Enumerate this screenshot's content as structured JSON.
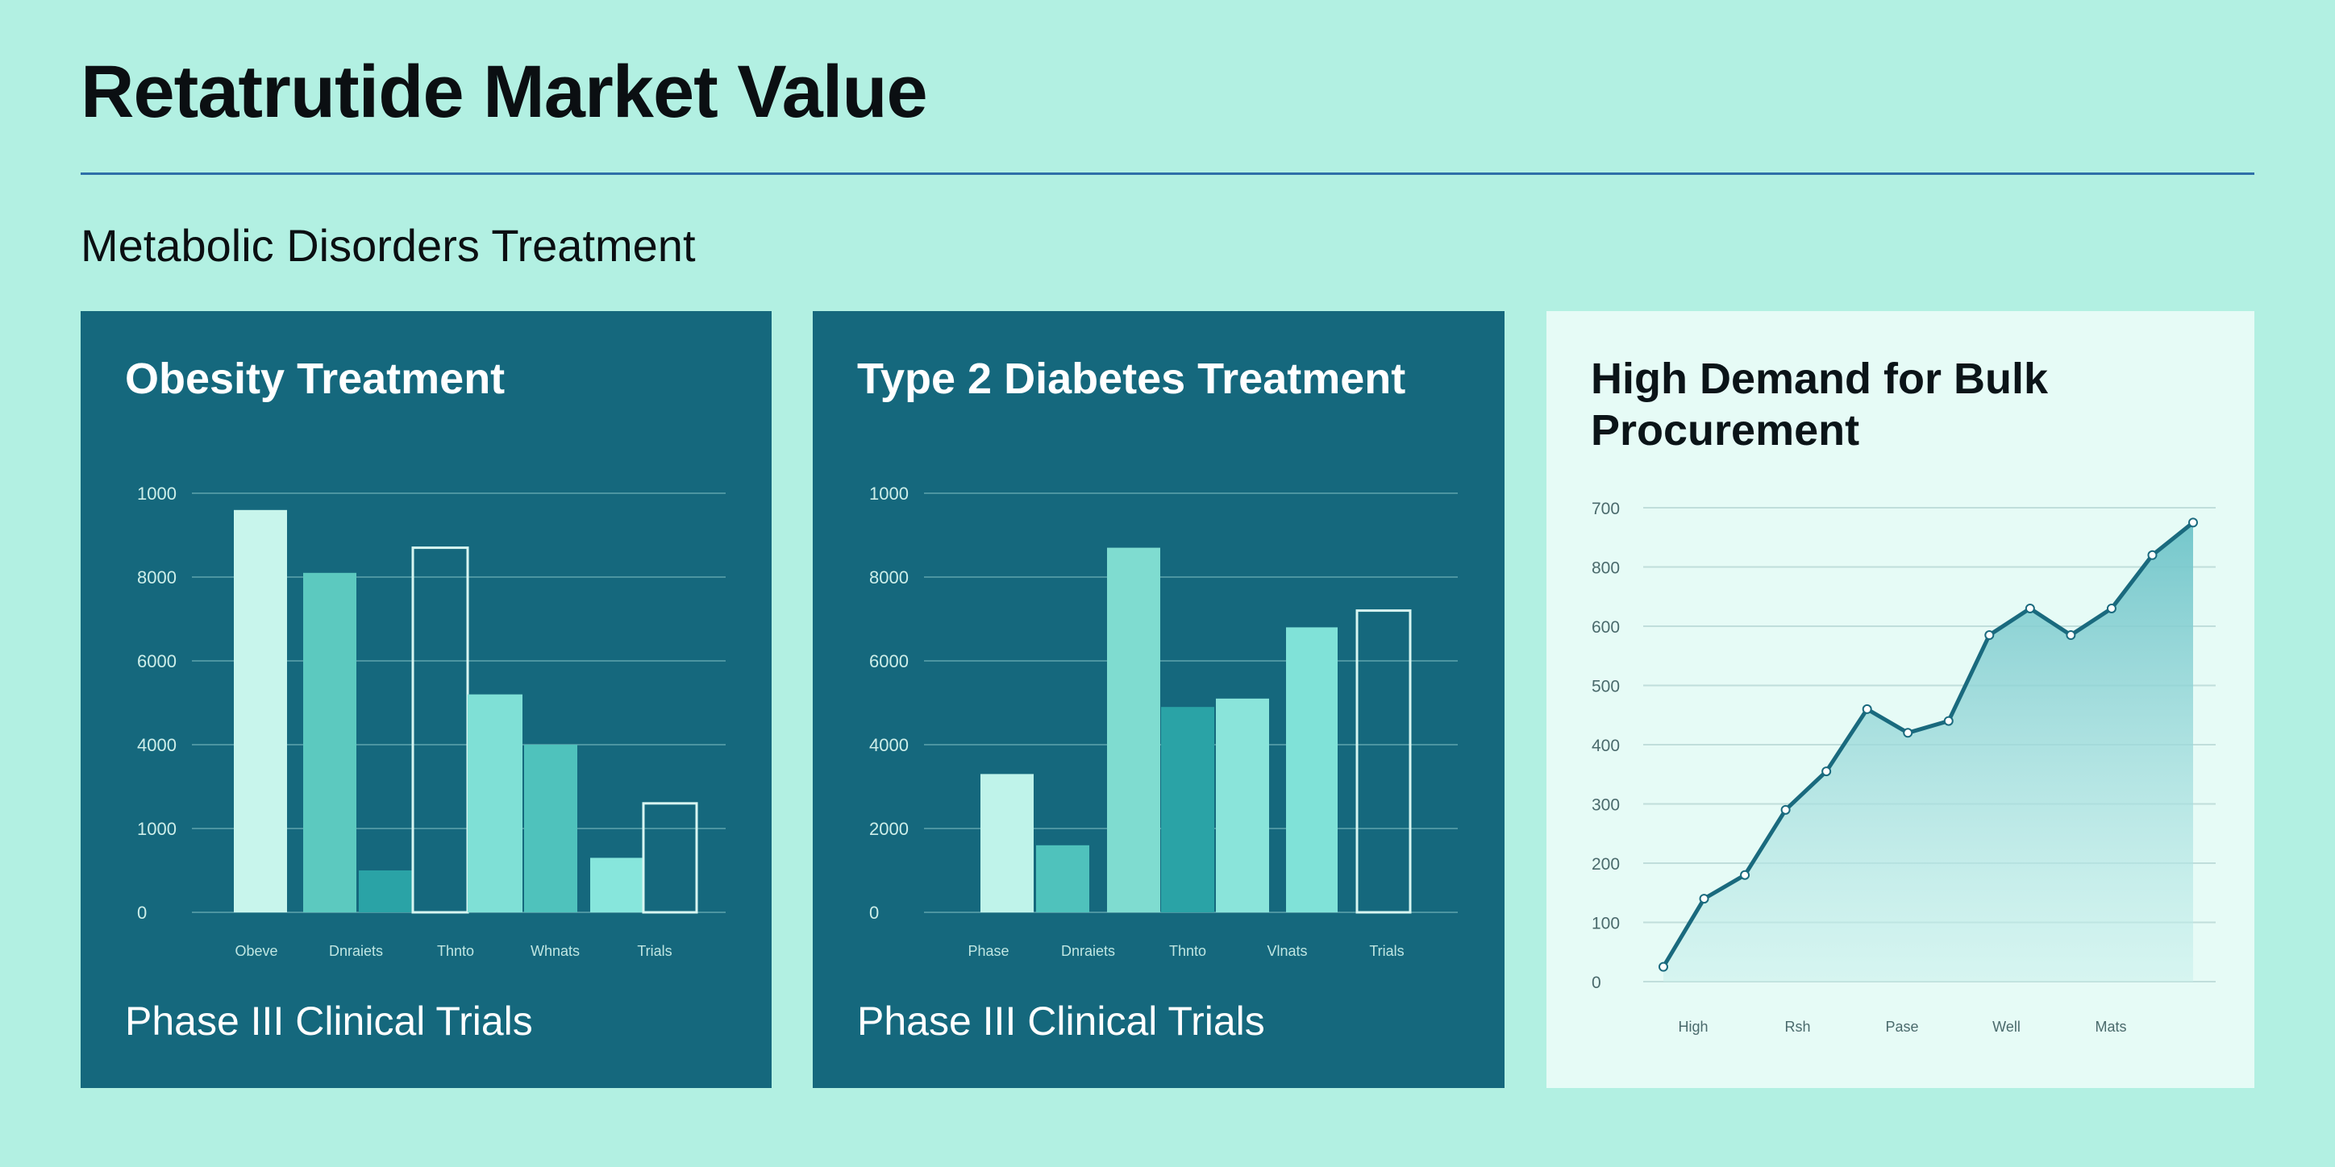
{
  "page": {
    "title": "Retatrutide Market Value",
    "subtitle": "Metabolic Disorders Treatment"
  },
  "colors": {
    "background": "#b2f0e2",
    "dark_card": "#15687d",
    "light_card": "#e6fbf6",
    "rule": "#2e6fa8",
    "line": "#1a6a7e"
  },
  "cards": [
    {
      "title": "Obesity Treatment",
      "footer": "Phase III Clinical Trials"
    },
    {
      "title": "Type 2 Diabetes Treatment",
      "footer": "Phase III Clinical Trials"
    },
    {
      "title": "High Demand for Bulk Procurement",
      "footer": ""
    }
  ],
  "chart_data": [
    {
      "type": "bar",
      "title": "Obesity Treatment",
      "ticks": [
        "0",
        "1000",
        "4000",
        "6000",
        "8000",
        "1000"
      ],
      "grid": true,
      "x_tick_labels": [
        "Obeve",
        "Dnraiets",
        "Thnto",
        "Whnats",
        "Trials"
      ],
      "values": [
        9600,
        8100,
        1000,
        8700,
        5200,
        4000,
        1300,
        2600
      ],
      "bar_colors": [
        "#c8f5ec",
        "#5cc9bf",
        "#2aa3a6",
        "outline",
        "#7fe0d6",
        "#4fc2bc",
        "#87e6dc",
        "outline"
      ]
    },
    {
      "type": "bar",
      "title": "Type 2 Diabetes Treatment",
      "ticks": [
        "0",
        "2000",
        "4000",
        "6000",
        "8000",
        "1000"
      ],
      "grid": true,
      "x_tick_labels": [
        "Phase",
        "Dnraiets",
        "Thnto",
        "Vlnats",
        "Trials"
      ],
      "values": [
        3300,
        1600,
        8700,
        4900,
        5100,
        6800,
        7200
      ],
      "bar_colors": [
        "#bff3ea",
        "#4fc2bc",
        "#7fdcd0",
        "#2aa3a6",
        "#8ae4da",
        "#80e2d8",
        "outline"
      ]
    },
    {
      "type": "area",
      "title": "High Demand for Bulk Procurement",
      "ticks": [
        "0",
        "100",
        "200",
        "300",
        "400",
        "500",
        "600",
        "800",
        "700"
      ],
      "grid": true,
      "x_tick_labels": [
        "High",
        "Rsh",
        "Pase",
        "Well",
        "Mats"
      ],
      "points": [
        25,
        140,
        180,
        290,
        355,
        460,
        420,
        440,
        585,
        630,
        585,
        630,
        720,
        775
      ]
    }
  ]
}
